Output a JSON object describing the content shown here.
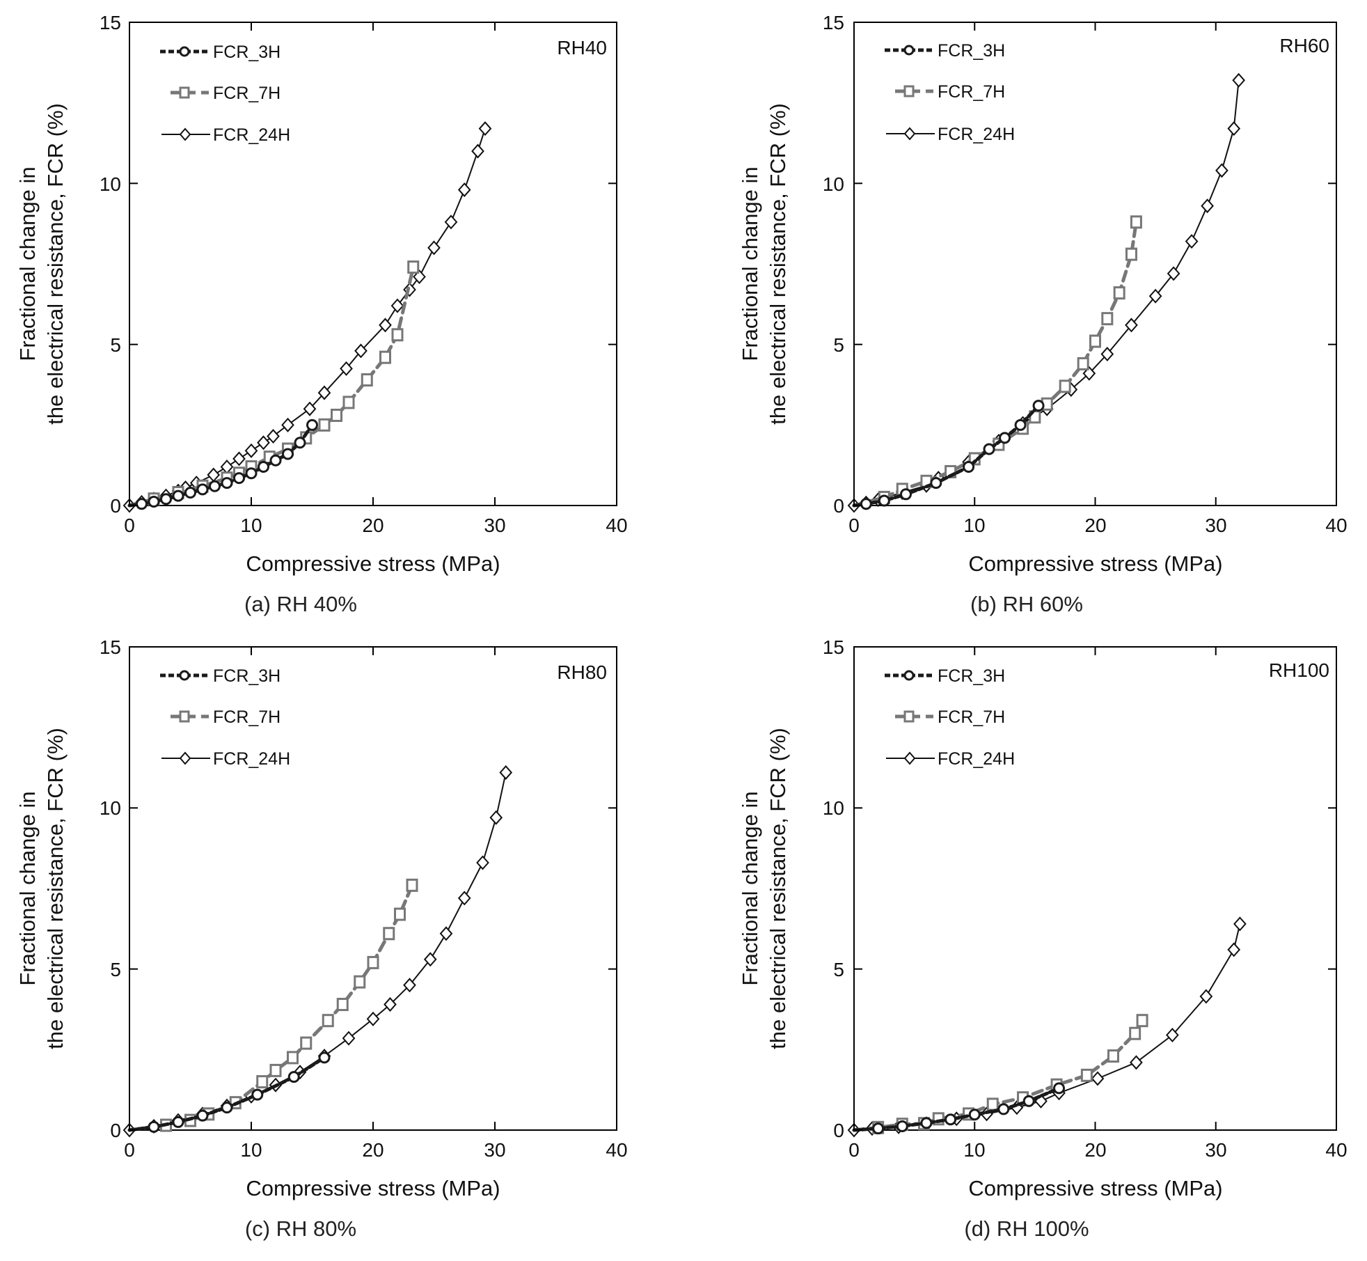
{
  "colors": {
    "FCR_3H": "#1a1a1a",
    "FCR_7H": "#777777",
    "FCR_24H": "#111111"
  },
  "chart_data": [
    {
      "type": "line",
      "panel": "a",
      "caption": "(a) RH 40%",
      "label": "RH40",
      "xlabel": "Compressive stress (MPa)",
      "ylabel_lines": [
        "Fractional change in",
        "the electrical resistance, FCR (%)"
      ],
      "xlim": [
        0,
        40
      ],
      "ylim": [
        0,
        15
      ],
      "xticks": [
        "0",
        "10",
        "20",
        "30",
        "40"
      ],
      "yticks": [
        "0",
        "5",
        "10",
        "15"
      ],
      "legend": [
        "FCR_3H",
        "FCR_7H",
        "FCR_24H"
      ],
      "series": [
        {
          "name": "FCR_3H",
          "x": [
            0,
            1,
            2,
            3,
            4,
            5,
            6,
            7,
            8,
            9,
            10,
            11,
            12,
            13,
            14,
            15
          ],
          "y": [
            0,
            0.05,
            0.12,
            0.2,
            0.3,
            0.4,
            0.5,
            0.6,
            0.7,
            0.85,
            1.0,
            1.2,
            1.4,
            1.6,
            1.95,
            2.5
          ]
        },
        {
          "name": "FCR_7H",
          "x": [
            0,
            2,
            4,
            6,
            8,
            9,
            10,
            11.5,
            13,
            14.5,
            16,
            17,
            18,
            19.5,
            21,
            22,
            23.3
          ],
          "y": [
            0,
            0.2,
            0.4,
            0.6,
            0.85,
            1.0,
            1.2,
            1.5,
            1.75,
            2.1,
            2.5,
            2.8,
            3.2,
            3.9,
            4.6,
            5.3,
            7.4
          ]
        },
        {
          "name": "FCR_24H",
          "x": [
            0,
            1,
            2,
            3,
            4,
            4.6,
            5.5,
            6.9,
            8,
            9,
            10,
            11,
            11.8,
            13,
            14.8,
            16,
            17.8,
            19,
            21,
            22,
            23,
            23.8,
            25,
            26.4,
            27.5,
            28.6,
            29.2
          ],
          "y": [
            0,
            0.1,
            0.2,
            0.3,
            0.45,
            0.55,
            0.7,
            0.95,
            1.2,
            1.45,
            1.7,
            1.95,
            2.15,
            2.5,
            3.0,
            3.5,
            4.25,
            4.8,
            5.6,
            6.2,
            6.7,
            7.1,
            8.0,
            8.8,
            9.8,
            11.0,
            11.7
          ]
        }
      ]
    },
    {
      "type": "line",
      "panel": "b",
      "caption": "(b) RH 60%",
      "label": "RH60",
      "xlabel": "Compressive stress (MPa)",
      "ylabel_lines": [
        "Fractional change in",
        "the electrical resistance, FCR (%)"
      ],
      "xlim": [
        0,
        40
      ],
      "ylim": [
        0,
        15
      ],
      "xticks": [
        "0",
        "10",
        "20",
        "30",
        "40"
      ],
      "yticks": [
        "0",
        "5",
        "10",
        "15"
      ],
      "legend": [
        "FCR_3H",
        "FCR_7H",
        "FCR_24H"
      ],
      "series": [
        {
          "name": "FCR_3H",
          "x": [
            0,
            1,
            2.5,
            4.3,
            6.8,
            9.5,
            11.2,
            12.5,
            13.8,
            15.3
          ],
          "y": [
            0,
            0.05,
            0.15,
            0.35,
            0.7,
            1.2,
            1.75,
            2.1,
            2.5,
            3.1
          ]
        },
        {
          "name": "FCR_7H",
          "x": [
            0,
            2.5,
            4,
            6,
            8,
            10,
            12,
            14,
            15,
            16,
            17.5,
            19,
            20,
            21,
            22,
            23,
            23.4
          ],
          "y": [
            0,
            0.25,
            0.5,
            0.75,
            1.05,
            1.45,
            1.9,
            2.4,
            2.75,
            3.15,
            3.7,
            4.4,
            5.1,
            5.8,
            6.6,
            7.8,
            8.8
          ]
        },
        {
          "name": "FCR_24H",
          "x": [
            0,
            1,
            2,
            4,
            6,
            7,
            9.5,
            12,
            14,
            16,
            18,
            19.5,
            21,
            23,
            25,
            26.5,
            28,
            29.3,
            30.5,
            31.5,
            31.9
          ],
          "y": [
            0,
            0.08,
            0.18,
            0.4,
            0.62,
            0.85,
            1.35,
            2.0,
            2.55,
            3.0,
            3.6,
            4.1,
            4.7,
            5.6,
            6.5,
            7.2,
            8.2,
            9.3,
            10.4,
            11.7,
            13.2
          ]
        }
      ]
    },
    {
      "type": "line",
      "panel": "c",
      "caption": "(c) RH 80%",
      "label": "RH80",
      "xlabel": "Compressive stress (MPa)",
      "ylabel_lines": [
        "Fractional change in",
        "the electrical resistance, FCR (%)"
      ],
      "xlim": [
        0,
        40
      ],
      "ylim": [
        0,
        15
      ],
      "xticks": [
        "0",
        "10",
        "20",
        "30",
        "40"
      ],
      "yticks": [
        "0",
        "5",
        "10",
        "15"
      ],
      "legend": [
        "FCR_3H",
        "FCR_7H",
        "FCR_24H"
      ],
      "series": [
        {
          "name": "FCR_3H",
          "x": [
            0,
            2,
            4,
            6,
            8,
            10.5,
            13.5,
            16
          ],
          "y": [
            0,
            0.1,
            0.25,
            0.45,
            0.7,
            1.1,
            1.65,
            2.25
          ]
        },
        {
          "name": "FCR_7H",
          "x": [
            0,
            3,
            5,
            6.5,
            8.7,
            10.9,
            12,
            13.4,
            14.5,
            16.3,
            17.5,
            18.9,
            20,
            21.3,
            22.2,
            23.2
          ],
          "y": [
            0,
            0.15,
            0.3,
            0.5,
            0.85,
            1.5,
            1.85,
            2.25,
            2.7,
            3.4,
            3.9,
            4.6,
            5.2,
            6.1,
            6.7,
            7.6
          ]
        },
        {
          "name": "FCR_24H",
          "x": [
            0,
            2,
            4,
            6,
            8,
            10,
            12,
            14,
            16,
            18,
            20,
            21.4,
            23,
            24.7,
            26,
            27.5,
            29,
            30.1,
            30.9
          ],
          "y": [
            0,
            0.12,
            0.3,
            0.5,
            0.75,
            1.05,
            1.4,
            1.8,
            2.3,
            2.85,
            3.45,
            3.9,
            4.5,
            5.3,
            6.1,
            7.2,
            8.3,
            9.7,
            11.1
          ]
        }
      ]
    },
    {
      "type": "line",
      "panel": "d",
      "caption": "(d) RH 100%",
      "label": "RH100",
      "xlabel": "Compressive stress (MPa)",
      "ylabel_lines": [
        "Fractional change in",
        "the electrical resistance, FCR (%)"
      ],
      "xlim": [
        0,
        40
      ],
      "ylim": [
        0,
        15
      ],
      "xticks": [
        "0",
        "10",
        "20",
        "30",
        "40"
      ],
      "yticks": [
        "0",
        "5",
        "10",
        "15"
      ],
      "legend": [
        "FCR_3H",
        "FCR_7H",
        "FCR_24H"
      ],
      "series": [
        {
          "name": "FCR_3H",
          "x": [
            0,
            2,
            4,
            6,
            8,
            10,
            12.4,
            14.5,
            17
          ],
          "y": [
            0,
            0.05,
            0.12,
            0.22,
            0.33,
            0.48,
            0.65,
            0.9,
            1.3
          ]
        },
        {
          "name": "FCR_7H",
          "x": [
            0,
            2,
            4,
            5.8,
            7,
            9.5,
            11.5,
            14,
            16.8,
            19.3,
            21.5,
            23.3,
            23.9
          ],
          "y": [
            0,
            0.08,
            0.18,
            0.2,
            0.35,
            0.5,
            0.8,
            1.0,
            1.4,
            1.7,
            2.3,
            3.0,
            3.4
          ]
        },
        {
          "name": "FCR_24H",
          "x": [
            0,
            1.5,
            3.7,
            6,
            8.5,
            11,
            13.5,
            15.5,
            17,
            20.2,
            23.4,
            26.4,
            29.2,
            31.5,
            32
          ],
          "y": [
            0,
            0.05,
            0.1,
            0.2,
            0.35,
            0.5,
            0.7,
            0.9,
            1.15,
            1.6,
            2.1,
            2.95,
            4.15,
            5.6,
            6.4
          ]
        }
      ]
    }
  ]
}
